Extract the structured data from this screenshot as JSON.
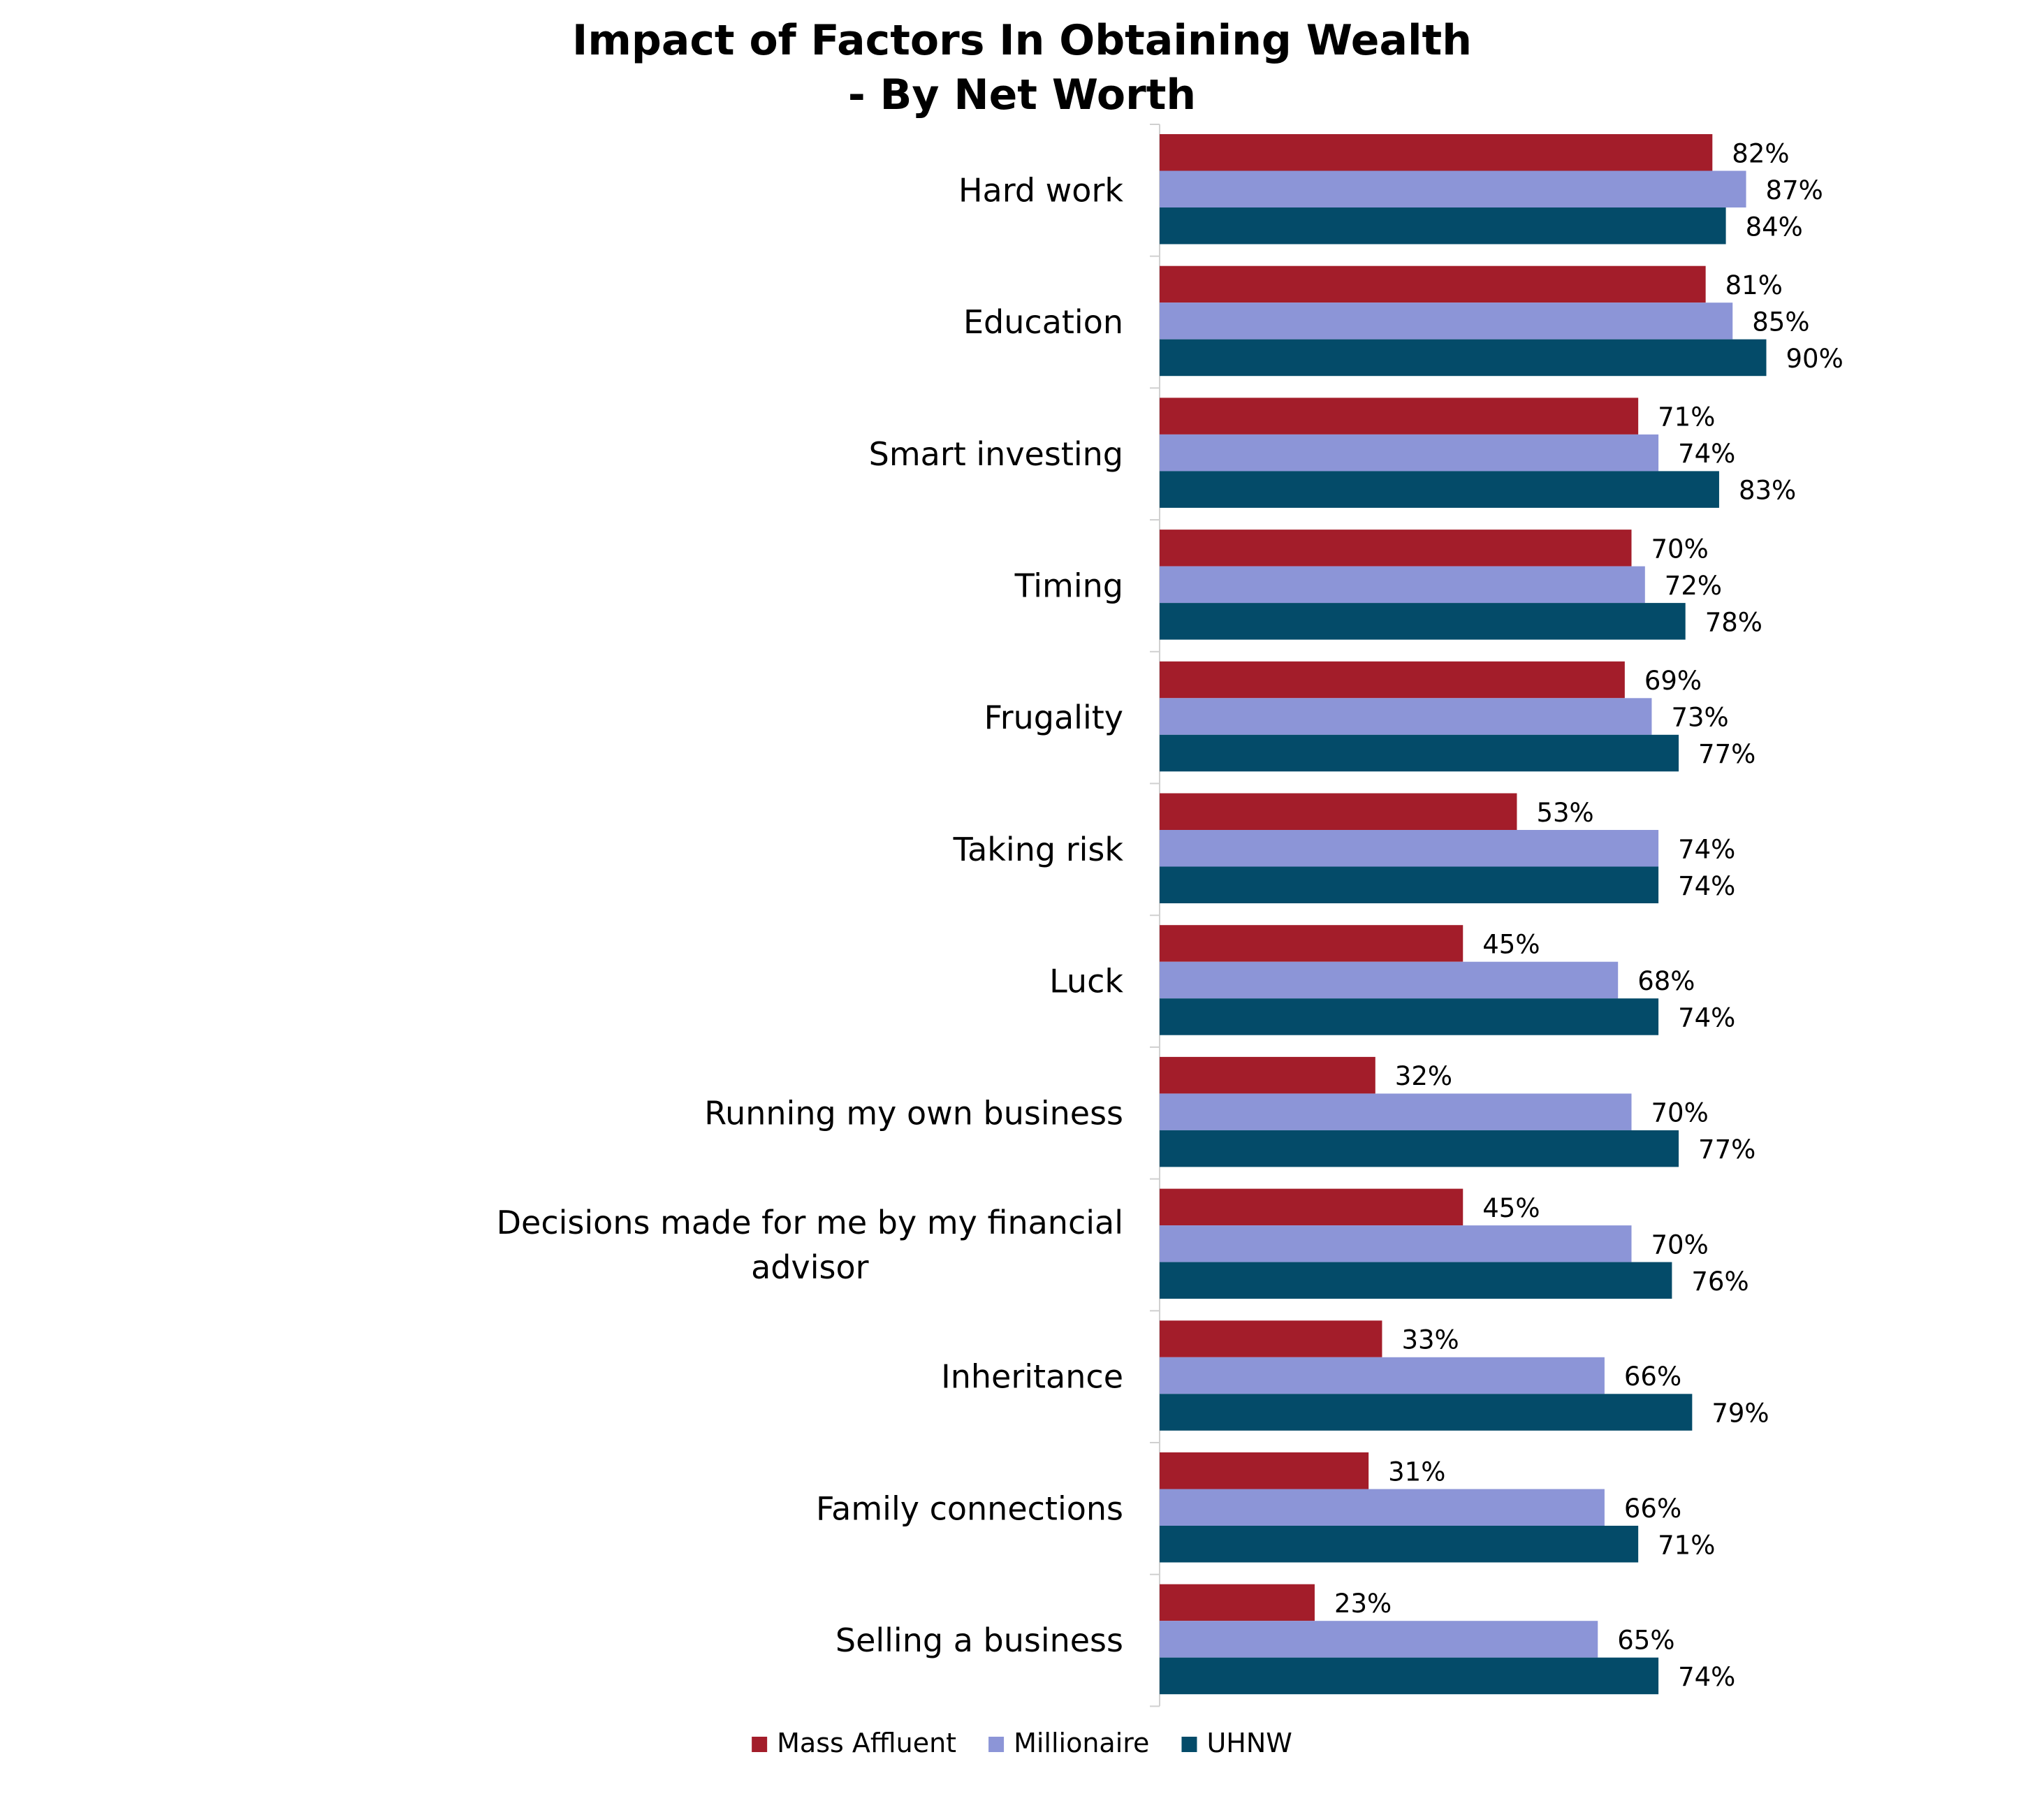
{
  "chart_data": {
    "type": "bar",
    "orientation": "horizontal",
    "title": [
      "Impact of Factors In Obtaining Wealth",
      "- By Net Worth"
    ],
    "xlabel": "",
    "ylabel": "",
    "xlim": [
      0,
      100
    ],
    "value_format": "percent",
    "grid": false,
    "legend_position": "bottom",
    "categories": [
      [
        "Hard work"
      ],
      [
        "Education"
      ],
      [
        "Smart investing"
      ],
      [
        "Timing"
      ],
      [
        "Frugality"
      ],
      [
        "Taking risk"
      ],
      [
        "Luck"
      ],
      [
        "Running my own business"
      ],
      [
        "Decisions made for me by my financial",
        "advisor"
      ],
      [
        "Inheritance"
      ],
      [
        "Family connections"
      ],
      [
        "Selling a business"
      ]
    ],
    "series": [
      {
        "name": "Mass Affluent",
        "color": "#A31D2A",
        "values": [
          82,
          81,
          71,
          70,
          69,
          53,
          45,
          32,
          45,
          33,
          31,
          23
        ],
        "labels": [
          "82%",
          "81%",
          "71%",
          "70%",
          "69%",
          "53%",
          "45%",
          "32%",
          "45%",
          "33%",
          "31%",
          "23%"
        ]
      },
      {
        "name": "Millionaire",
        "color": "#8C95D7",
        "values": [
          87,
          85,
          74,
          72,
          73,
          74,
          68,
          70,
          70,
          66,
          66,
          65
        ],
        "labels": [
          "87%",
          "85%",
          "74%",
          "72%",
          "73%",
          "74%",
          "68%",
          "70%",
          "70%",
          "66%",
          "66%",
          "65%"
        ]
      },
      {
        "name": "UHNW",
        "color": "#044B69",
        "values": [
          84,
          90,
          83,
          78,
          77,
          74,
          74,
          77,
          76,
          79,
          71,
          74
        ],
        "labels": [
          "84%",
          "90%",
          "83%",
          "78%",
          "77%",
          "74%",
          "74%",
          "77%",
          "76%",
          "79%",
          "71%",
          "74%"
        ]
      }
    ]
  }
}
